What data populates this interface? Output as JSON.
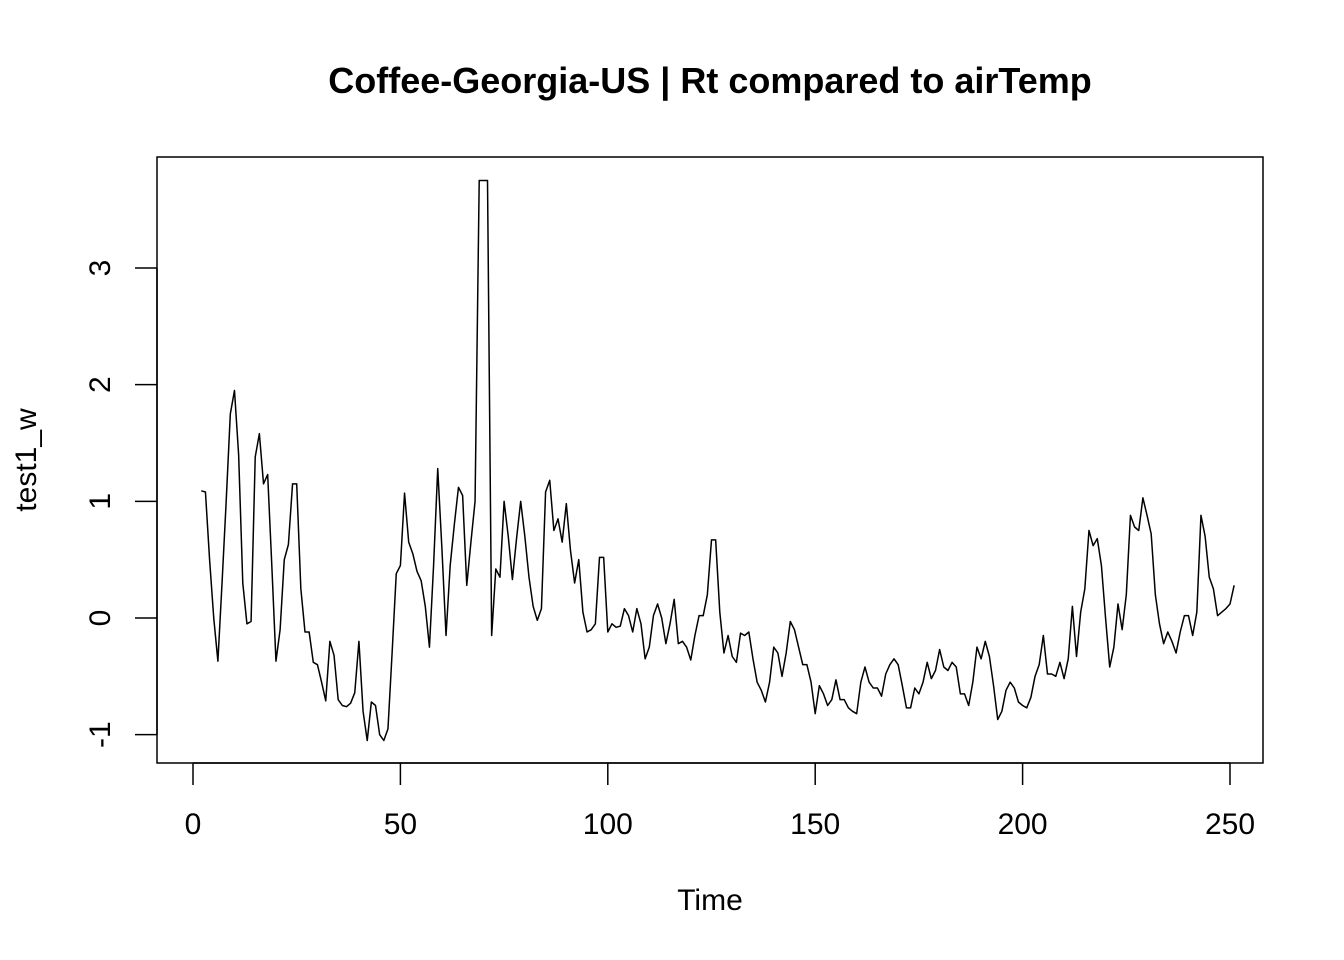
{
  "chart_data": {
    "type": "line",
    "title": "Coffee-Georgia-US | Rt compared to airTemp",
    "xlabel": "Time",
    "ylabel": "test1_w",
    "xlim": [
      1,
      249
    ],
    "ylim": [
      -1.05,
      3.75
    ],
    "x_ticks": [
      0,
      50,
      100,
      150,
      200,
      250
    ],
    "y_ticks": [
      -1,
      0,
      1,
      2,
      3
    ],
    "grid": false,
    "legend": "none",
    "line_color": "#000000",
    "series": [
      {
        "x_start": 2,
        "values": [
          1.09,
          1.08,
          0.5,
          0.0,
          -0.37,
          0.3,
          1.0,
          1.75,
          1.95,
          1.4,
          0.3,
          -0.05,
          -0.03,
          1.38,
          1.58,
          1.15,
          1.23,
          0.45,
          -0.37,
          -0.1,
          0.5,
          0.63,
          1.15,
          1.15,
          0.25,
          -0.12,
          -0.12,
          -0.38,
          -0.4,
          -0.55,
          -0.71,
          -0.2,
          -0.32,
          -0.7,
          -0.75,
          -0.76,
          -0.73,
          -0.64,
          -0.2,
          -0.8,
          -1.05,
          -0.72,
          -0.75,
          -1.0,
          -1.05,
          -0.95,
          -0.3,
          0.38,
          0.45,
          1.07,
          0.65,
          0.55,
          0.4,
          0.32,
          0.1,
          -0.25,
          0.45,
          1.28,
          0.6,
          -0.15,
          0.45,
          0.8,
          1.12,
          1.05,
          0.28,
          0.65,
          1.0,
          3.75,
          3.75,
          3.75,
          -0.15,
          0.42,
          0.35,
          1.0,
          0.7,
          0.33,
          0.68,
          1.0,
          0.7,
          0.35,
          0.1,
          -0.02,
          0.08,
          1.08,
          1.18,
          0.75,
          0.85,
          0.65,
          0.98,
          0.58,
          0.3,
          0.5,
          0.05,
          -0.12,
          -0.1,
          -0.05,
          0.52,
          0.52,
          -0.12,
          -0.05,
          -0.08,
          -0.07,
          0.08,
          0.02,
          -0.12,
          0.08,
          -0.05,
          -0.35,
          -0.25,
          0.02,
          0.12,
          0.0,
          -0.22,
          -0.05,
          0.16,
          -0.22,
          -0.2,
          -0.25,
          -0.36,
          -0.15,
          0.02,
          0.02,
          0.2,
          0.67,
          0.67,
          0.05,
          -0.3,
          -0.15,
          -0.33,
          -0.38,
          -0.13,
          -0.15,
          -0.12,
          -0.35,
          -0.55,
          -0.62,
          -0.72,
          -0.55,
          -0.25,
          -0.3,
          -0.5,
          -0.3,
          -0.03,
          -0.1,
          -0.25,
          -0.4,
          -0.4,
          -0.55,
          -0.82,
          -0.58,
          -0.65,
          -0.75,
          -0.7,
          -0.53,
          -0.7,
          -0.7,
          -0.77,
          -0.8,
          -0.82,
          -0.55,
          -0.42,
          -0.55,
          -0.6,
          -0.6,
          -0.67,
          -0.48,
          -0.4,
          -0.35,
          -0.4,
          -0.58,
          -0.77,
          -0.77,
          -0.6,
          -0.65,
          -0.55,
          -0.38,
          -0.52,
          -0.45,
          -0.27,
          -0.42,
          -0.45,
          -0.38,
          -0.42,
          -0.65,
          -0.65,
          -0.75,
          -0.55,
          -0.25,
          -0.35,
          -0.2,
          -0.33,
          -0.58,
          -0.87,
          -0.8,
          -0.62,
          -0.55,
          -0.6,
          -0.72,
          -0.75,
          -0.77,
          -0.68,
          -0.5,
          -0.4,
          -0.15,
          -0.48,
          -0.48,
          -0.5,
          -0.38,
          -0.52,
          -0.35,
          0.1,
          -0.33,
          0.05,
          0.25,
          0.75,
          0.62,
          0.68,
          0.45,
          0.0,
          -0.42,
          -0.25,
          0.12,
          -0.1,
          0.2,
          0.88,
          0.78,
          0.75,
          1.03,
          0.88,
          0.72,
          0.2,
          -0.05,
          -0.22,
          -0.12,
          -0.2,
          -0.3,
          -0.12,
          0.02,
          0.02,
          -0.15,
          0.05,
          0.88,
          0.7,
          0.35,
          0.25,
          0.02,
          0.05,
          0.08,
          0.12,
          0.28
        ]
      }
    ]
  }
}
